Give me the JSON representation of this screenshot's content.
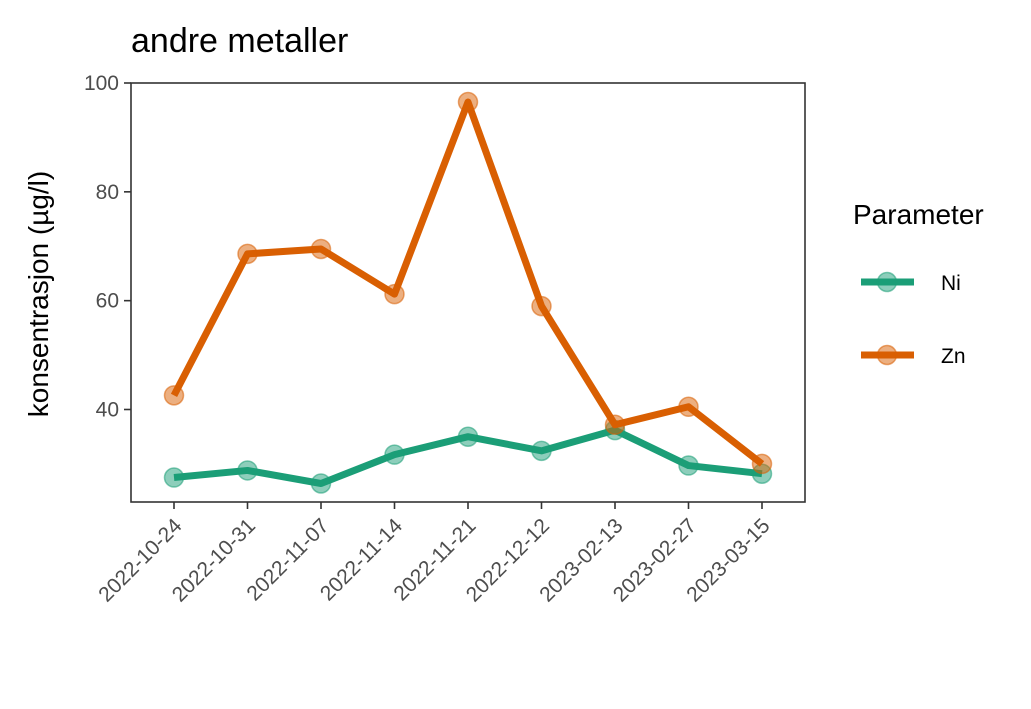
{
  "chart_data": {
    "type": "line",
    "title": "andre metaller",
    "ylabel": "konsentrasjon (µg/l)",
    "xlabel": "",
    "categories": [
      "2022-10-24",
      "2022-10-31",
      "2022-11-07",
      "2022-11-14",
      "2022-11-21",
      "2022-12-12",
      "2023-02-13",
      "2023-02-27",
      "2023-03-15"
    ],
    "yticks": [
      40,
      60,
      80,
      100
    ],
    "ylim": [
      23,
      100
    ],
    "grid": false,
    "legend": {
      "title": "Parameter",
      "placement": "right"
    },
    "series": [
      {
        "name": "Ni",
        "color": "#1b9e77",
        "values": [
          27.5,
          28.8,
          26.4,
          31.7,
          35.0,
          32.4,
          36.2,
          29.7,
          28.2
        ]
      },
      {
        "name": "Zn",
        "color": "#d95f02",
        "values": [
          42.6,
          68.6,
          69.5,
          61.2,
          96.5,
          59.0,
          37.2,
          40.5,
          30.0
        ]
      }
    ]
  }
}
